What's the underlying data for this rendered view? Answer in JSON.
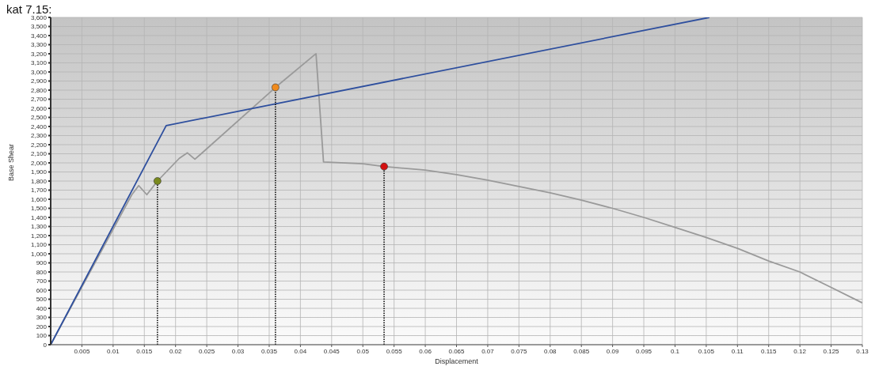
{
  "chart_data": {
    "type": "line",
    "title": "kat 7.15:",
    "xlabel": "Displacement",
    "ylabel": "Base Shear",
    "xlim": [
      0,
      0.13
    ],
    "ylim": [
      0,
      3600
    ],
    "xticks": [
      0.005,
      0.01,
      0.015,
      0.02,
      0.025,
      0.03,
      0.035,
      0.04,
      0.045,
      0.05,
      0.055,
      0.06,
      0.065,
      0.07,
      0.075,
      0.08,
      0.085,
      0.09,
      0.095,
      0.1,
      0.105,
      0.11,
      0.115,
      0.12,
      0.125,
      0.13
    ],
    "yticks": [
      0,
      100,
      200,
      300,
      400,
      500,
      600,
      700,
      800,
      900,
      {
        "value": 1000,
        "label": "1,000"
      },
      {
        "value": 1100,
        "label": "1,100"
      },
      {
        "value": 1200,
        "label": "1,200"
      },
      {
        "value": 1300,
        "label": "1,300"
      },
      {
        "value": 1400,
        "label": "1,400"
      },
      {
        "value": 1500,
        "label": "1,500"
      },
      {
        "value": 1600,
        "label": "1,600"
      },
      {
        "value": 1700,
        "label": "1,700"
      },
      {
        "value": 1800,
        "label": "1,800"
      },
      {
        "value": 1900,
        "label": "1,900"
      },
      {
        "value": 2000,
        "label": "2,000"
      },
      {
        "value": 2100,
        "label": "2,100"
      },
      {
        "value": 2200,
        "label": "2,200"
      },
      {
        "value": 2300,
        "label": "2,300"
      },
      {
        "value": 2400,
        "label": "2,400"
      },
      {
        "value": 2500,
        "label": "2,500"
      },
      {
        "value": 2600,
        "label": "2,600"
      },
      {
        "value": 2700,
        "label": "2,700"
      },
      {
        "value": 2800,
        "label": "2,800"
      },
      {
        "value": 2900,
        "label": "2,900"
      },
      {
        "value": 3000,
        "label": "3,000"
      },
      {
        "value": 3100,
        "label": "3,100"
      },
      {
        "value": 3200,
        "label": "3,200"
      },
      {
        "value": 3300,
        "label": "3,300"
      },
      {
        "value": 3400,
        "label": "3,400"
      },
      {
        "value": 3500,
        "label": "3,500"
      },
      {
        "value": 3600,
        "label": "3,600"
      }
    ],
    "grid": true,
    "marker": "none",
    "line_style": "solid",
    "series": [
      {
        "color": "#9a9a9a",
        "x": [
          0,
          0.013,
          0.0141,
          0.0154,
          0.0171,
          0.0206,
          0.0219,
          0.0231,
          0.0241,
          0.036,
          0.0423,
          0.0425,
          0.0437,
          0.05,
          0.0534,
          0.06,
          0.065,
          0.07,
          0.075,
          0.08,
          0.085,
          0.09,
          0.095,
          0.1,
          0.105,
          0.11,
          0.115,
          0.12,
          0.125,
          0.13
        ],
        "values": [
          0,
          1650,
          1750,
          1650,
          1800,
          2050,
          2110,
          2040,
          2100,
          2830,
          3190,
          3200,
          2010,
          1990,
          1960,
          1920,
          1870,
          1810,
          1740,
          1670,
          1590,
          1500,
          1400,
          1290,
          1180,
          1060,
          920,
          800,
          630,
          460
        ]
      },
      {
        "color": "#2e4f9e",
        "x": [
          0,
          0.0185,
          0.1055
        ],
        "values": [
          0,
          2410,
          3600
        ]
      },
      {
        "type": "line",
        "color": "#000000",
        "line_style": "dotted",
        "x": [
          0.0171,
          0.0171
        ],
        "values": [
          0,
          1800
        ]
      },
      {
        "type": "line",
        "color": "#000000",
        "line_style": "dotted",
        "x": [
          0.036,
          0.036
        ],
        "values": [
          0,
          2830
        ]
      },
      {
        "type": "line",
        "color": "#000000",
        "line_style": "dotted",
        "x": [
          0.0534,
          0.0534
        ],
        "values": [
          0,
          1960
        ]
      },
      {
        "type": "scatter",
        "marker": "circle",
        "x": [
          0.0171,
          0.036,
          0.0534
        ],
        "values": [
          1800,
          2830,
          1960
        ],
        "colors": [
          "#7a8a1e",
          "#f08a1c",
          "#d41010"
        ]
      }
    ]
  }
}
